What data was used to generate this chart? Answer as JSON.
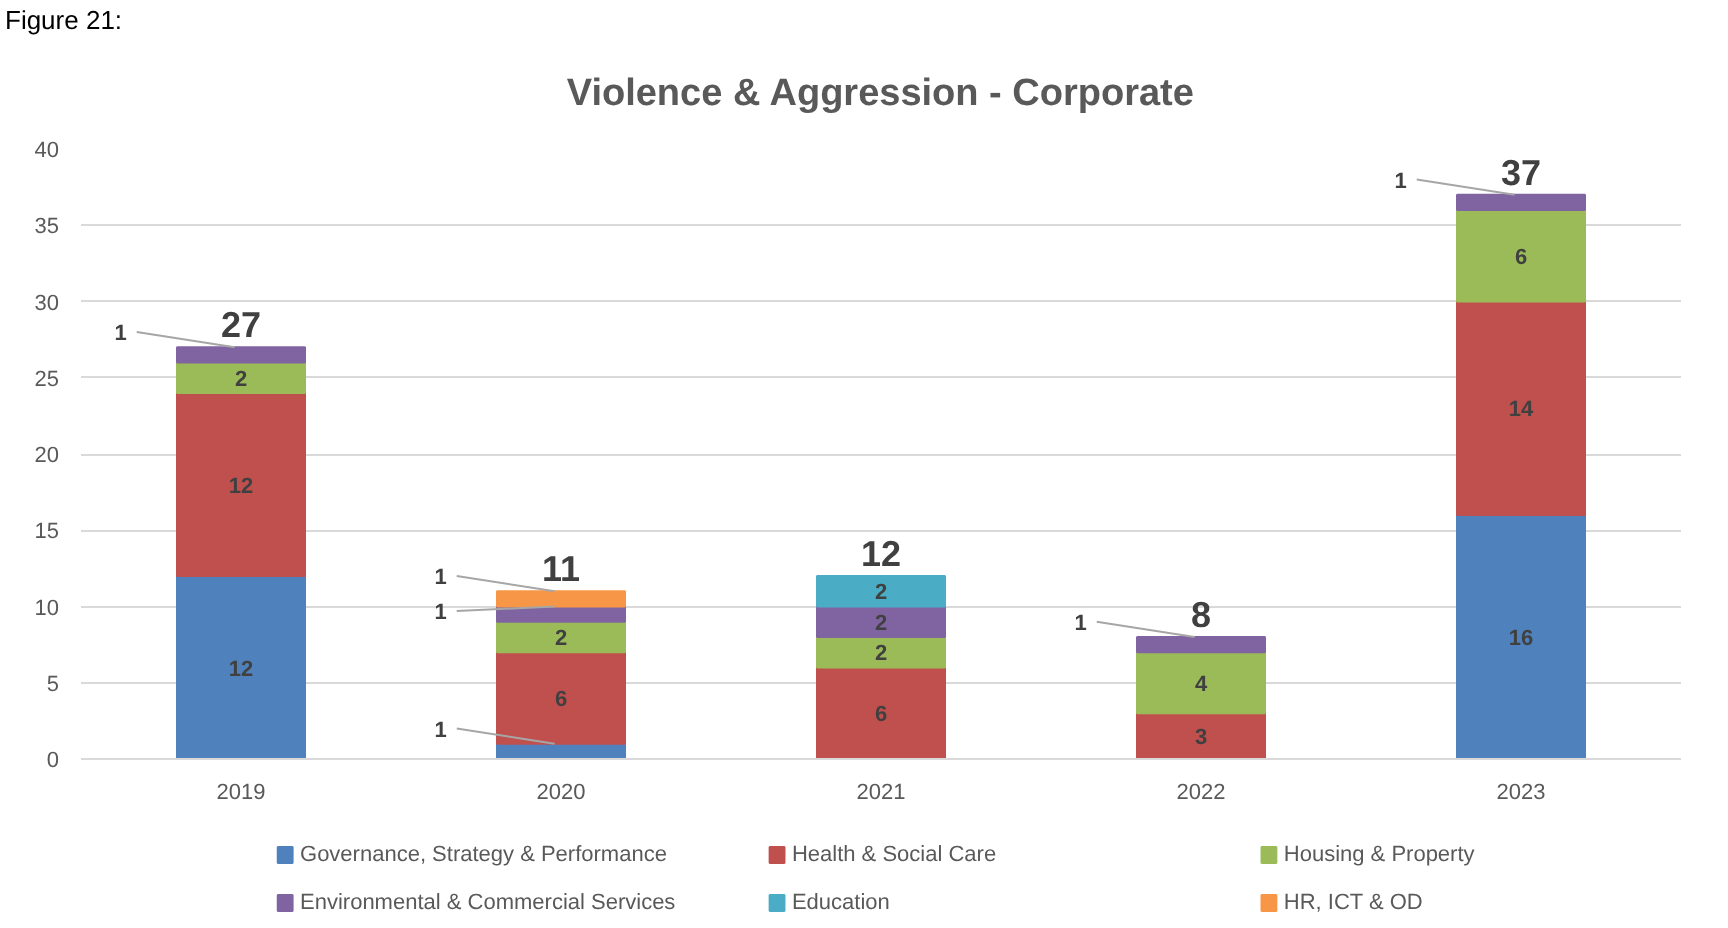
{
  "chart_data": {
    "type": "bar",
    "title": "Violence & Aggression - Corporate",
    "annotations": [
      "Figure 21:"
    ],
    "categories": [
      "2019",
      "2020",
      "2021",
      "2022",
      "2023"
    ],
    "stacked": true,
    "series": [
      {
        "name": "Governance, Strategy & Performance",
        "color": "#4f81bd",
        "values": [
          12,
          1,
          null,
          null,
          16
        ]
      },
      {
        "name": "Health & Social Care",
        "color": "#c0504d",
        "values": [
          12,
          6,
          6,
          3,
          14
        ]
      },
      {
        "name": "Housing & Property",
        "color": "#9bbb59",
        "values": [
          2,
          2,
          2,
          4,
          6
        ]
      },
      {
        "name": "Environmental & Commercial Services",
        "color": "#8064a2",
        "values": [
          1,
          1,
          2,
          1,
          1
        ]
      },
      {
        "name": "Education",
        "color": "#4bacc6",
        "values": [
          null,
          null,
          2,
          null,
          null
        ]
      },
      {
        "name": "HR, ICT & OD",
        "color": "#f79646",
        "values": [
          null,
          1,
          null,
          null,
          null
        ]
      }
    ],
    "ylim": [
      0,
      40
    ],
    "yticks": [
      0,
      5,
      10,
      15,
      20,
      25,
      30,
      35,
      40
    ],
    "grid": "y",
    "legend": "bottom",
    "data_labels": true,
    "totals": [
      "27",
      "11",
      "12",
      "8",
      "37"
    ]
  }
}
